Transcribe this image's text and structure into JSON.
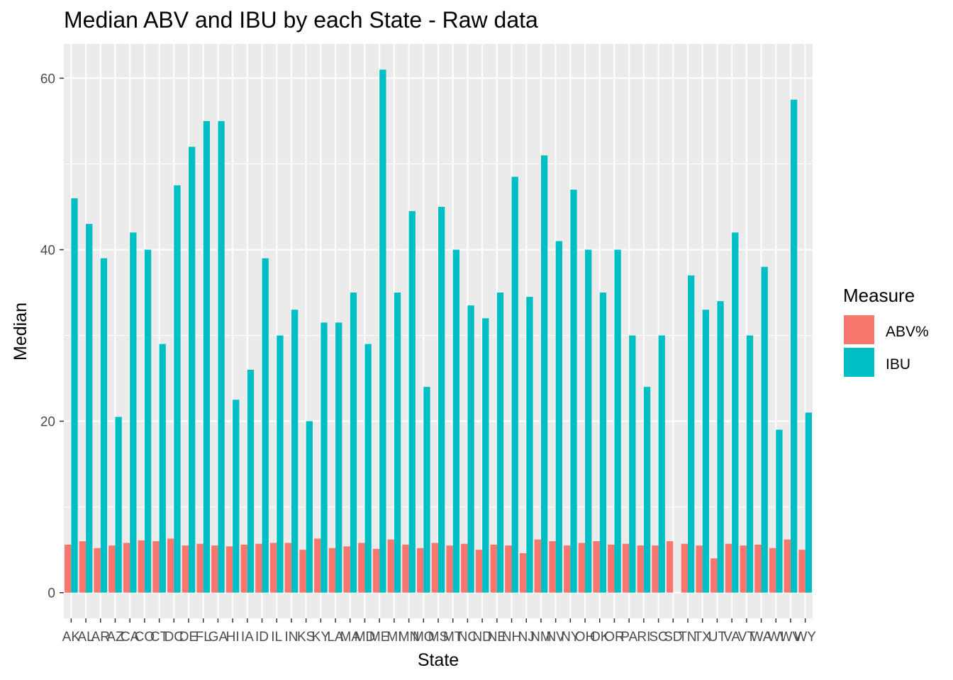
{
  "chart_data": {
    "type": "bar",
    "title": "Median ABV and IBU by each State - Raw data",
    "xlabel": "State",
    "ylabel": "Median",
    "ylim": [
      -3,
      64
    ],
    "y_ticks": [
      0,
      20,
      40,
      60
    ],
    "grid": true,
    "legend": {
      "title": "Measure",
      "position": "right"
    },
    "categories": [
      "AK",
      "AL",
      "AR",
      "AZ",
      "CA",
      "CO",
      "CT",
      "DC",
      "DE",
      "FL",
      "GA",
      "HI",
      "IA",
      "ID",
      "IL",
      "IN",
      "KS",
      "KY",
      "LA",
      "MA",
      "MD",
      "ME",
      "MI",
      "MN",
      "MO",
      "MS",
      "MT",
      "NC",
      "ND",
      "NE",
      "NH",
      "NJ",
      "NM",
      "NV",
      "NY",
      "OH",
      "OK",
      "OR",
      "PA",
      "RI",
      "SC",
      "SD",
      "TN",
      "TX",
      "UT",
      "VA",
      "VT",
      "WA",
      "WI",
      "WV",
      "WY"
    ],
    "series": [
      {
        "name": "ABV%",
        "color": "#F8766D",
        "values": [
          5.6,
          6.0,
          5.2,
          5.5,
          5.8,
          6.1,
          6.0,
          6.3,
          5.5,
          5.7,
          5.5,
          5.4,
          5.6,
          5.7,
          5.8,
          5.8,
          5.0,
          6.3,
          5.2,
          5.4,
          5.8,
          5.1,
          6.2,
          5.6,
          5.2,
          5.8,
          5.5,
          5.7,
          5.0,
          5.6,
          5.5,
          4.6,
          6.2,
          6.0,
          5.5,
          5.8,
          6.0,
          5.6,
          5.7,
          5.5,
          5.5,
          6.0,
          5.7,
          5.5,
          4.0,
          5.7,
          5.5,
          5.6,
          5.2,
          6.2,
          5.0
        ]
      },
      {
        "name": "IBU",
        "color": "#00BFC4",
        "values": [
          46,
          43,
          39,
          20.5,
          42,
          40,
          29,
          47.5,
          52,
          55,
          55,
          22.5,
          26,
          39,
          30,
          33,
          20,
          31.5,
          31.5,
          35,
          29,
          61,
          35,
          44.5,
          24,
          45,
          40,
          33.5,
          32,
          35,
          48.5,
          34.5,
          51,
          41,
          47,
          40,
          35,
          40,
          30,
          24,
          30,
          null,
          37,
          33,
          34,
          42,
          30,
          38,
          19,
          57.5,
          21
        ]
      }
    ]
  }
}
